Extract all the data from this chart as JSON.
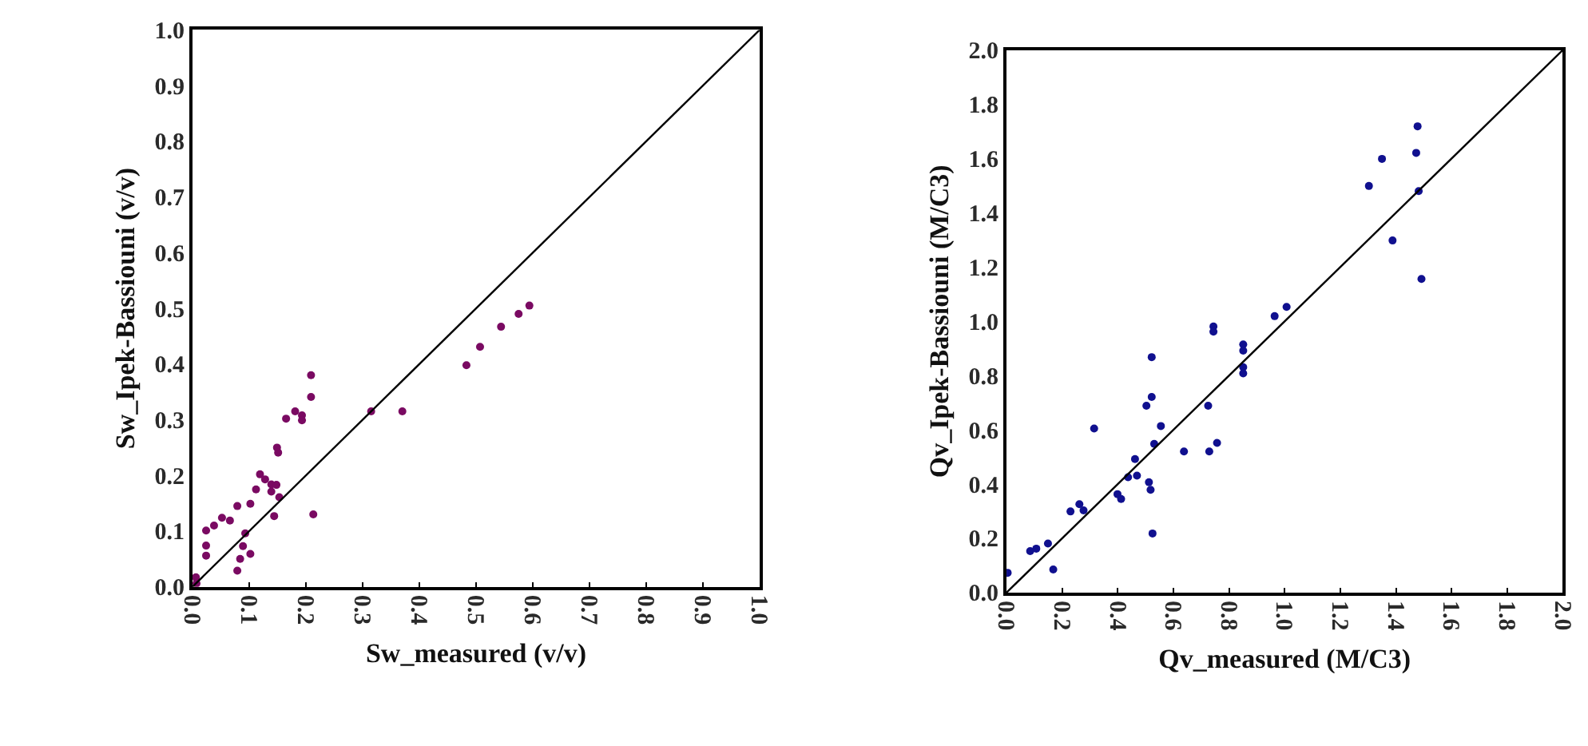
{
  "chart_data": [
    {
      "type": "scatter",
      "xlabel": "Sw_measured (v/v)",
      "ylabel": "Sw_Ipek-Bassiouni (v/v)",
      "xlim": [
        0,
        1
      ],
      "ylim": [
        0,
        1
      ],
      "xticks": [
        {
          "value": 0,
          "label": "0.0"
        },
        {
          "value": 0.1,
          "label": "0.1"
        },
        {
          "value": 0.2,
          "label": "0.2"
        },
        {
          "value": 0.3,
          "label": "0.3"
        },
        {
          "value": 0.4,
          "label": "0.4"
        },
        {
          "value": 0.5,
          "label": "0.5"
        },
        {
          "value": 0.6,
          "label": "0.6"
        },
        {
          "value": 0.7,
          "label": "0.7"
        },
        {
          "value": 0.8,
          "label": "0.8"
        },
        {
          "value": 0.9,
          "label": "0.9"
        },
        {
          "value": 1,
          "label": "1.0"
        }
      ],
      "yticks": [
        {
          "value": 0,
          "label": "0.0"
        },
        {
          "value": 0.1,
          "label": "0.1"
        },
        {
          "value": 0.2,
          "label": "0.2"
        },
        {
          "value": 0.3,
          "label": "0.3"
        },
        {
          "value": 0.4,
          "label": "0.4"
        },
        {
          "value": 0.5,
          "label": "0.5"
        },
        {
          "value": 0.6,
          "label": "0.6"
        },
        {
          "value": 0.7,
          "label": "0.7"
        },
        {
          "value": 0.8,
          "label": "0.8"
        },
        {
          "value": 0.9,
          "label": "0.9"
        },
        {
          "value": 1,
          "label": "1.0"
        }
      ],
      "marker": "circle",
      "series": [
        {
          "color": "#7a0a62",
          "x": [
            0.209,
            0.209,
            0.165,
            0.181,
            0.193,
            0.193,
            0.149,
            0.151,
            0.119,
            0.128,
            0.139,
            0.148,
            0.139,
            0.153,
            0.112,
            0.144,
            0.213,
            0.102,
            0.079,
            0.066,
            0.052,
            0.038,
            0.024,
            0.024,
            0.024,
            0.093,
            0.089,
            0.102,
            0.084,
            0.079,
            0.006,
            0.007,
            0.315,
            0.37,
            0.483,
            0.507,
            0.544,
            0.575,
            0.594
          ],
          "values": [
            0.38,
            0.341,
            0.302,
            0.315,
            0.308,
            0.299,
            0.25,
            0.241,
            0.202,
            0.193,
            0.184,
            0.183,
            0.171,
            0.161,
            0.175,
            0.127,
            0.13,
            0.149,
            0.145,
            0.119,
            0.124,
            0.11,
            0.101,
            0.074,
            0.056,
            0.096,
            0.073,
            0.059,
            0.05,
            0.029,
            0.017,
            0.006,
            0.315,
            0.315,
            0.398,
            0.431,
            0.467,
            0.49,
            0.505
          ]
        },
        {
          "type": "line",
          "marker": "none",
          "color": "#000000",
          "x": [
            0,
            1
          ],
          "values": [
            0,
            1
          ]
        }
      ]
    },
    {
      "type": "scatter",
      "xlabel": "Qv_measured (M/C3)",
      "ylabel": "Qv_Ipek-Bassiouni (M/C3)",
      "xlim": [
        0,
        2
      ],
      "ylim": [
        0,
        2
      ],
      "xticks": [
        {
          "value": 0,
          "label": "0.0"
        },
        {
          "value": 0.2,
          "label": "0.2"
        },
        {
          "value": 0.4,
          "label": "0.4"
        },
        {
          "value": 0.6,
          "label": "0.6"
        },
        {
          "value": 0.8,
          "label": "0.8"
        },
        {
          "value": 1,
          "label": "1.0"
        },
        {
          "value": 1.2,
          "label": "1.2"
        },
        {
          "value": 1.4,
          "label": "1.4"
        },
        {
          "value": 1.6,
          "label": "1.6"
        },
        {
          "value": 1.8,
          "label": "1.8"
        },
        {
          "value": 2,
          "label": "2.0"
        }
      ],
      "yticks": [
        {
          "value": 0,
          "label": "0.0"
        },
        {
          "value": 0.2,
          "label": "0.2"
        },
        {
          "value": 0.4,
          "label": "0.4"
        },
        {
          "value": 0.6,
          "label": "0.6"
        },
        {
          "value": 0.8,
          "label": "0.8"
        },
        {
          "value": 1,
          "label": "1.0"
        },
        {
          "value": 1.2,
          "label": "1.2"
        },
        {
          "value": 1.4,
          "label": "1.4"
        },
        {
          "value": 1.6,
          "label": "1.6"
        },
        {
          "value": 1.8,
          "label": "1.8"
        },
        {
          "value": 2,
          "label": "2.0"
        }
      ],
      "marker": "circle",
      "series": [
        {
          "color": "#10108f",
          "x": [
            0.004,
            0.168,
            0.085,
            0.107,
            0.149,
            0.23,
            0.262,
            0.277,
            0.315,
            0.399,
            0.412,
            0.437,
            0.462,
            0.469,
            0.512,
            0.518,
            0.525,
            0.531,
            0.555,
            0.503,
            0.522,
            0.522,
            0.638,
            0.729,
            0.757,
            0.725,
            0.744,
            0.744,
            0.851,
            0.851,
            0.851,
            0.851,
            0.964,
            1.007,
            1.303,
            1.35,
            1.473,
            1.478,
            1.482,
            1.388,
            1.492
          ],
          "values": [
            0.073,
            0.085,
            0.153,
            0.162,
            0.181,
            0.299,
            0.326,
            0.303,
            0.605,
            0.363,
            0.345,
            0.425,
            0.492,
            0.431,
            0.407,
            0.379,
            0.218,
            0.548,
            0.614,
            0.689,
            0.721,
            0.868,
            0.52,
            0.52,
            0.552,
            0.689,
            0.981,
            0.962,
            0.915,
            0.892,
            0.831,
            0.808,
            1.019,
            1.053,
            1.499,
            1.599,
            1.621,
            1.719,
            1.48,
            1.298,
            1.156
          ]
        },
        {
          "type": "line",
          "marker": "none",
          "color": "#000000",
          "x": [
            0,
            2
          ],
          "values": [
            0,
            2
          ]
        }
      ]
    }
  ]
}
